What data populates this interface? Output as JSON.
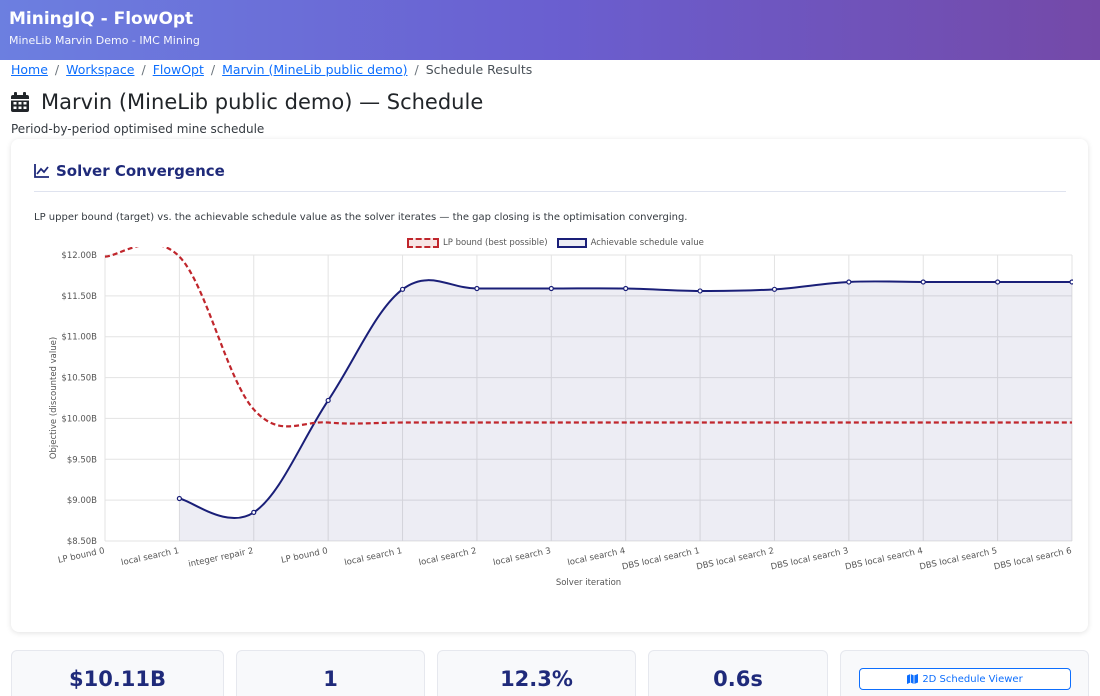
{
  "app": {
    "title": "MiningIQ - FlowOpt",
    "subtitle": "MineLib Marvin Demo - IMC Mining"
  },
  "breadcrumb": {
    "items": [
      "Home",
      "Workspace",
      "FlowOpt",
      "Marvin (MineLib public demo)"
    ],
    "current": "Schedule Results",
    "separator": "/"
  },
  "page": {
    "title": "Marvin (MineLib public demo) — Schedule",
    "subtitle": "Period-by-period optimised mine schedule",
    "icon": "calendar-icon"
  },
  "card": {
    "title": "Solver Convergence",
    "icon": "line-chart-icon",
    "description": "LP upper bound (target) vs. the achievable schedule value as the solver iterates — the gap closing is the optimisation converging."
  },
  "colors": {
    "accent": "#1f2a7a",
    "bound": "#c0262c",
    "achievable": "#1a1f78",
    "link": "#0d6efd"
  },
  "chart_data": {
    "type": "line",
    "xlabel": "Solver iteration",
    "ylabel": "Objective (discounted value)",
    "ylim": [
      8.5,
      12.0
    ],
    "yticks": [
      "$12.00B",
      "$11.50B",
      "$11.00B",
      "$10.50B",
      "$10.00B",
      "$9.50B",
      "$9.00B",
      "$8.50B"
    ],
    "categories": [
      "LP bound 0",
      "local search 1",
      "integer repair 2",
      "LP bound 0",
      "local search 1",
      "local search 2",
      "local search 3",
      "local search 4",
      "DBS local search 1",
      "DBS local search 2",
      "DBS local search 3",
      "DBS local search 4",
      "DBS local search 5",
      "DBS local search 6"
    ],
    "grid": true,
    "legend_position": "top",
    "series": [
      {
        "name": "LP bound (best possible)",
        "style": "dashed",
        "values": [
          11.98,
          11.98,
          10.11,
          9.95,
          9.95,
          9.95,
          9.95,
          9.95,
          9.95,
          9.95,
          9.95,
          9.95,
          9.95,
          9.95
        ]
      },
      {
        "name": "Achievable schedule value",
        "style": "solid",
        "values": [
          null,
          9.02,
          8.85,
          10.22,
          11.58,
          11.59,
          11.59,
          11.59,
          11.56,
          11.58,
          11.67,
          11.67,
          11.67,
          11.67
        ]
      }
    ]
  },
  "stats": [
    {
      "value": "$10.11B"
    },
    {
      "value": "1"
    },
    {
      "value": "12.3%"
    },
    {
      "value": "0.6s"
    }
  ],
  "viewer_button": {
    "label": "2D Schedule Viewer",
    "icon": "map-icon"
  }
}
